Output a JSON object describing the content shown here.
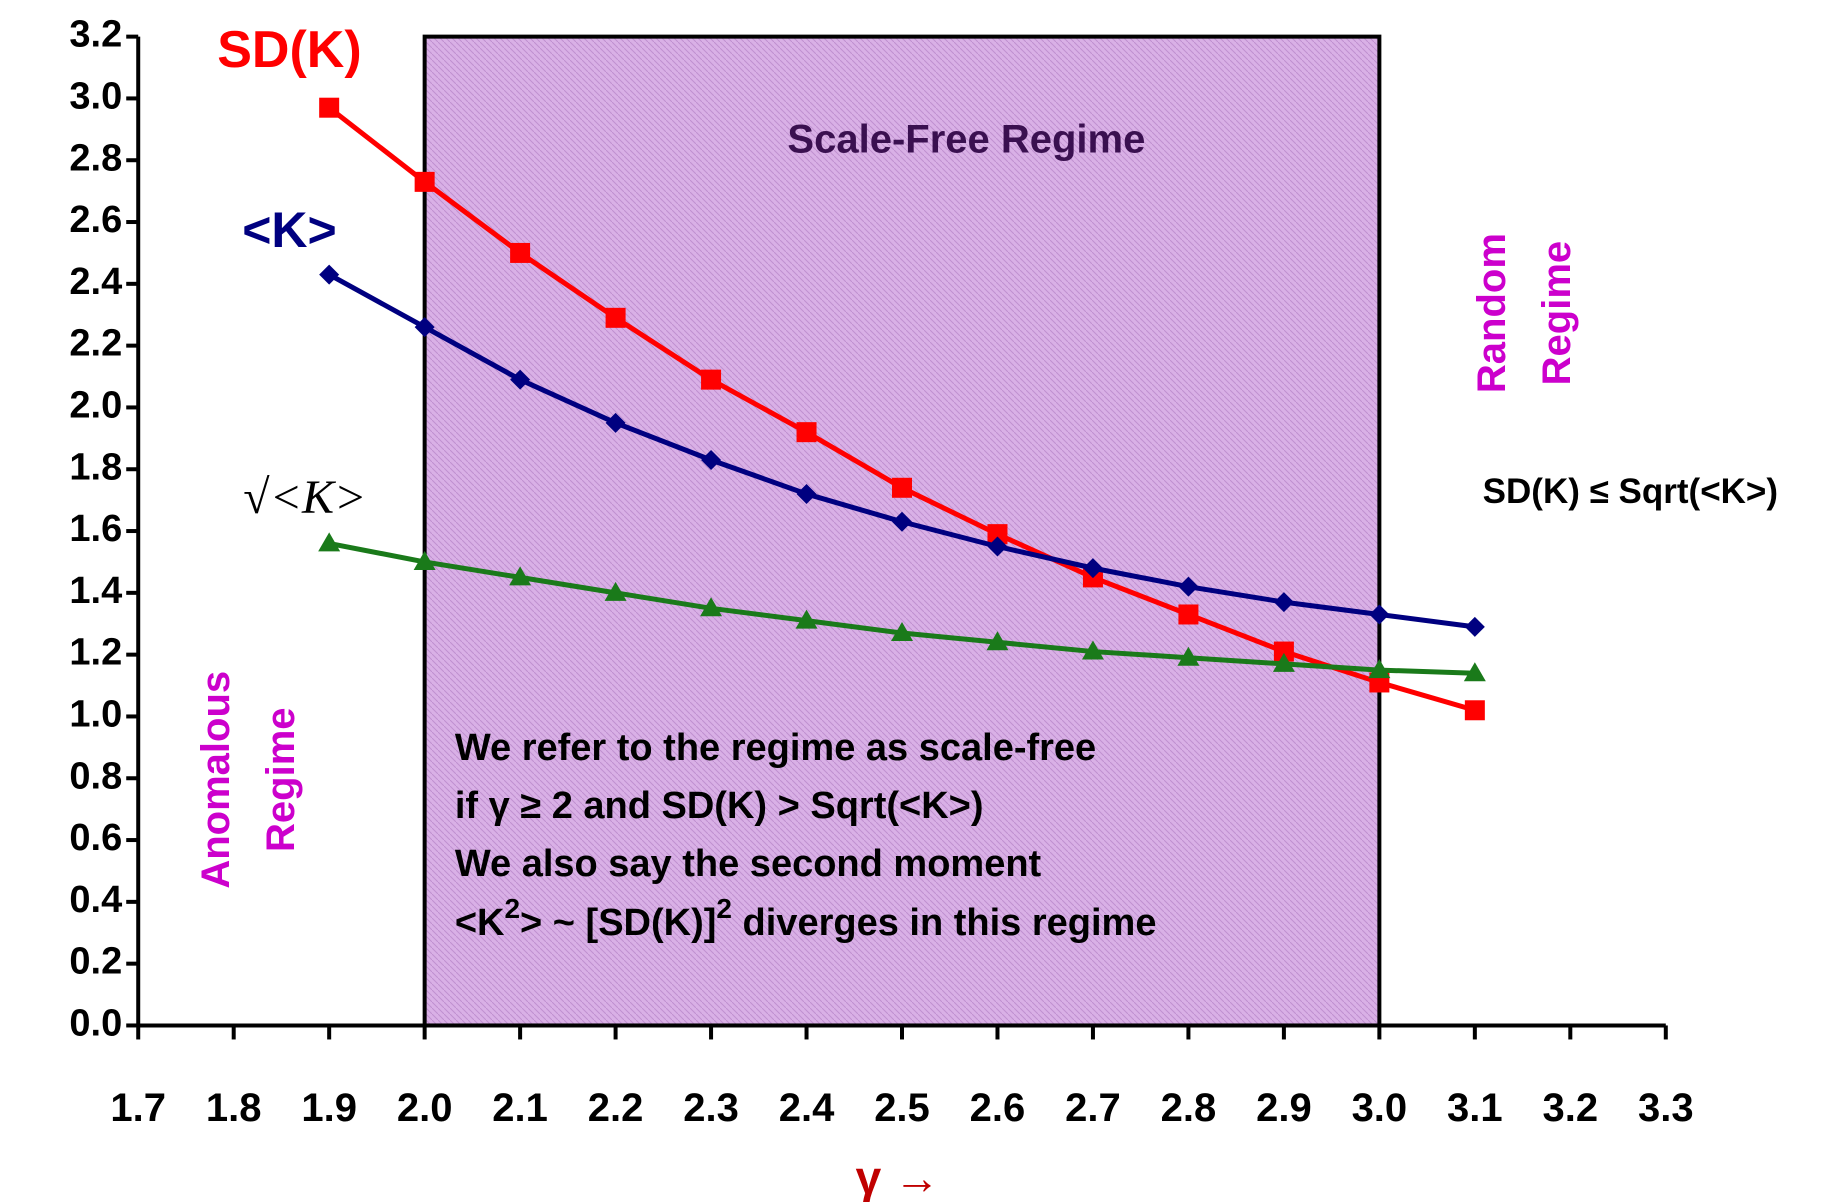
{
  "chart_data": {
    "type": "line",
    "x": [
      1.9,
      2.0,
      2.1,
      2.2,
      2.3,
      2.4,
      2.5,
      2.6,
      2.7,
      2.8,
      2.9,
      3.0,
      3.1
    ],
    "series": [
      {
        "name": "SD(K)",
        "color": "#ff0000",
        "marker": "square",
        "values": [
          2.97,
          2.73,
          2.5,
          2.29,
          2.09,
          1.92,
          1.74,
          1.59,
          1.45,
          1.33,
          1.21,
          1.11,
          1.02
        ]
      },
      {
        "name": "<K>",
        "color": "#000080",
        "marker": "diamond",
        "values": [
          2.43,
          2.26,
          2.09,
          1.95,
          1.83,
          1.72,
          1.63,
          1.55,
          1.48,
          1.42,
          1.37,
          1.33,
          1.29
        ]
      },
      {
        "name": "√<K>",
        "color": "#1a7a1a",
        "marker": "triangle",
        "values": [
          1.56,
          1.5,
          1.45,
          1.4,
          1.35,
          1.31,
          1.27,
          1.24,
          1.21,
          1.19,
          1.17,
          1.15,
          1.14
        ]
      }
    ],
    "xlim": [
      1.7,
      3.3
    ],
    "ylim": [
      0,
      3.2
    ],
    "xticks": [
      1.7,
      1.8,
      1.9,
      {
        "value": 2,
        "label": "2.0"
      },
      2.1,
      2.2,
      2.3,
      2.4,
      2.5,
      2.6,
      2.7,
      2.8,
      2.9,
      {
        "value": 3,
        "label": "3.0"
      },
      3.1,
      3.2,
      3.3
    ],
    "yticks": [
      {
        "value": 0,
        "label": "0.0"
      },
      0.2,
      0.4,
      0.6,
      0.8,
      {
        "value": 1,
        "label": "1.0"
      },
      1.2,
      1.4,
      1.6,
      1.8,
      {
        "value": 2,
        "label": "2.0"
      },
      2.2,
      2.4,
      2.6,
      2.8,
      {
        "value": 3,
        "label": "3.0"
      },
      3.2
    ],
    "x_label": "γ →",
    "shaded_region": {
      "x": [
        2.0,
        3.0
      ],
      "label": "Scale-Free Regime",
      "color": "#d9b0e6"
    },
    "random_regime": [
      "Random",
      "Regime"
    ],
    "anomalous_regime": [
      "Anomalous",
      "Regime"
    ],
    "random_condition": "SD(K) ≤ Sqrt(<K>)",
    "note": [
      "We refer to the regime as scale-free",
      "if γ ≥ 2 and SD(K) > Sqrt(<K>)",
      "We also say the second moment"
    ],
    "note_last": [
      "<K",
      "2",
      "> ~ [SD(K)]",
      "2",
      " diverges in this regime"
    ]
  }
}
